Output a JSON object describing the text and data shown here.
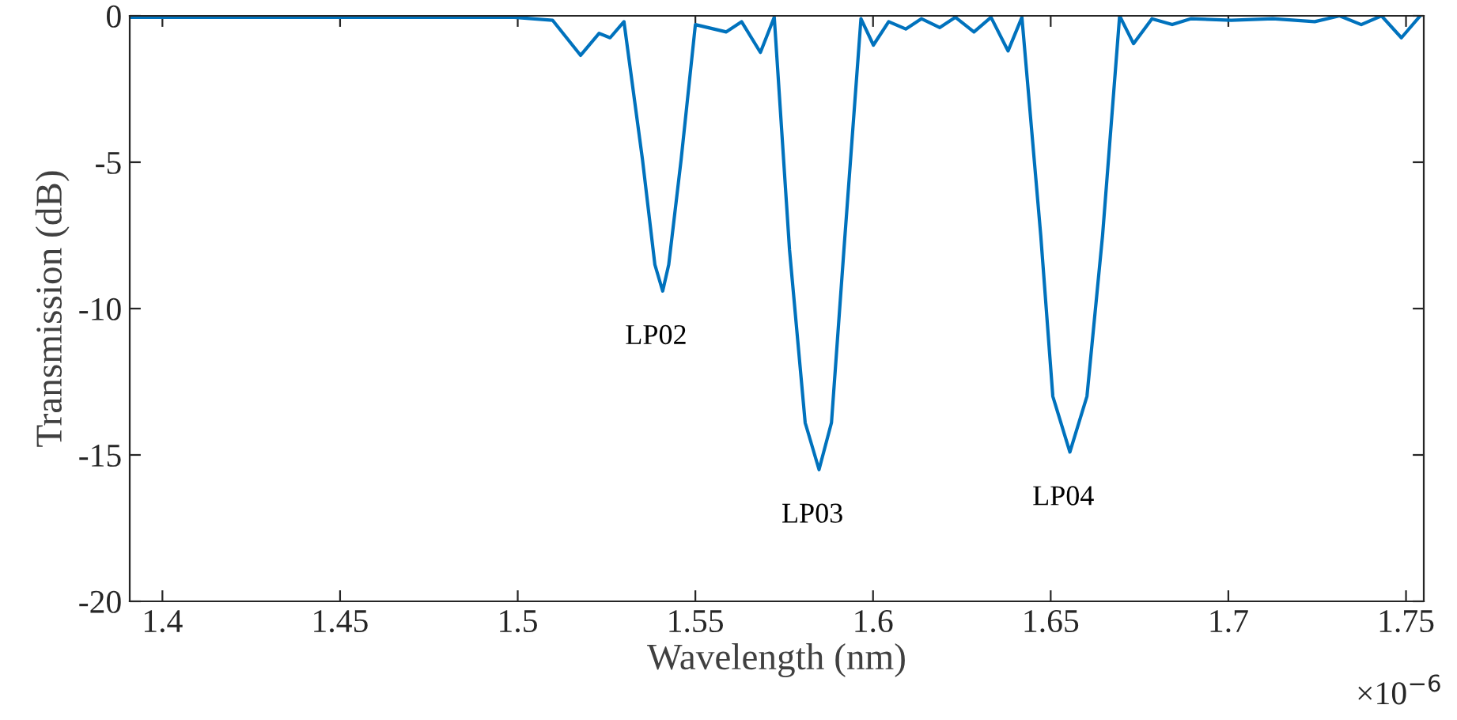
{
  "chart_data": {
    "type": "line",
    "xlabel": "Wavelength (nm)",
    "ylabel": "Transmission (dB)",
    "x": [
      1.3908,
      1.4205,
      1.4641,
      1.499,
      1.5098,
      1.5177,
      1.5229,
      1.526,
      1.5299,
      1.5351,
      1.5386,
      1.5408,
      1.5425,
      1.546,
      1.55,
      1.5587,
      1.563,
      1.5683,
      1.5722,
      1.5765,
      1.5809,
      1.5848,
      1.5883,
      1.5918,
      1.5966,
      1.6001,
      1.6044,
      1.6092,
      1.6136,
      1.6188,
      1.6232,
      1.6284,
      1.6332,
      1.638,
      1.6419,
      1.6472,
      1.6506,
      1.6554,
      1.6602,
      1.6646,
      1.6694,
      1.6733,
      1.6785,
      1.6842,
      1.6894,
      1.7008,
      1.7125,
      1.7243,
      1.7313,
      1.7374,
      1.7431,
      1.7487,
      1.754
    ],
    "series": [
      {
        "color": "#0072bd",
        "values": [
          -0.05,
          -0.05,
          -0.05,
          -0.05,
          -0.15,
          -1.35,
          -0.6,
          -0.75,
          -0.2,
          -4.9,
          -8.5,
          -9.4,
          -8.5,
          -4.9,
          -0.3,
          -0.55,
          -0.2,
          -1.25,
          -0.05,
          -8,
          -13.9,
          -15.5,
          -13.9,
          -8,
          -0.1,
          -1.0,
          -0.2,
          -0.45,
          -0.1,
          -0.4,
          -0.05,
          -0.55,
          -0.05,
          -1.2,
          -0.05,
          -7.5,
          -13,
          -14.9,
          -13,
          -7.5,
          0,
          -0.95,
          -0.1,
          -0.3,
          -0.1,
          -0.15,
          -0.1,
          -0.2,
          0,
          -0.3,
          0,
          -0.75,
          0
        ]
      }
    ],
    "xlim": [
      1.3908,
      1.755
    ],
    "xticks": [
      1.4,
      1.45,
      1.5,
      1.55,
      1.6,
      1.65,
      1.7,
      1.75
    ],
    "ylim": [
      -20,
      0
    ],
    "yticks": [
      -20,
      -15,
      -10,
      -5,
      0
    ],
    "grid": false,
    "legend": false,
    "marker": "none",
    "line_style": "solid",
    "annotations": [
      {
        "text": "LP02",
        "x": 1.5408,
        "y": -9.4
      },
      {
        "text": "LP03",
        "x": 1.5848,
        "y": -15.5
      },
      {
        "text": "LP04",
        "x": 1.6554,
        "y": -14.9
      },
      "×10$^{−6}$"
    ]
  }
}
